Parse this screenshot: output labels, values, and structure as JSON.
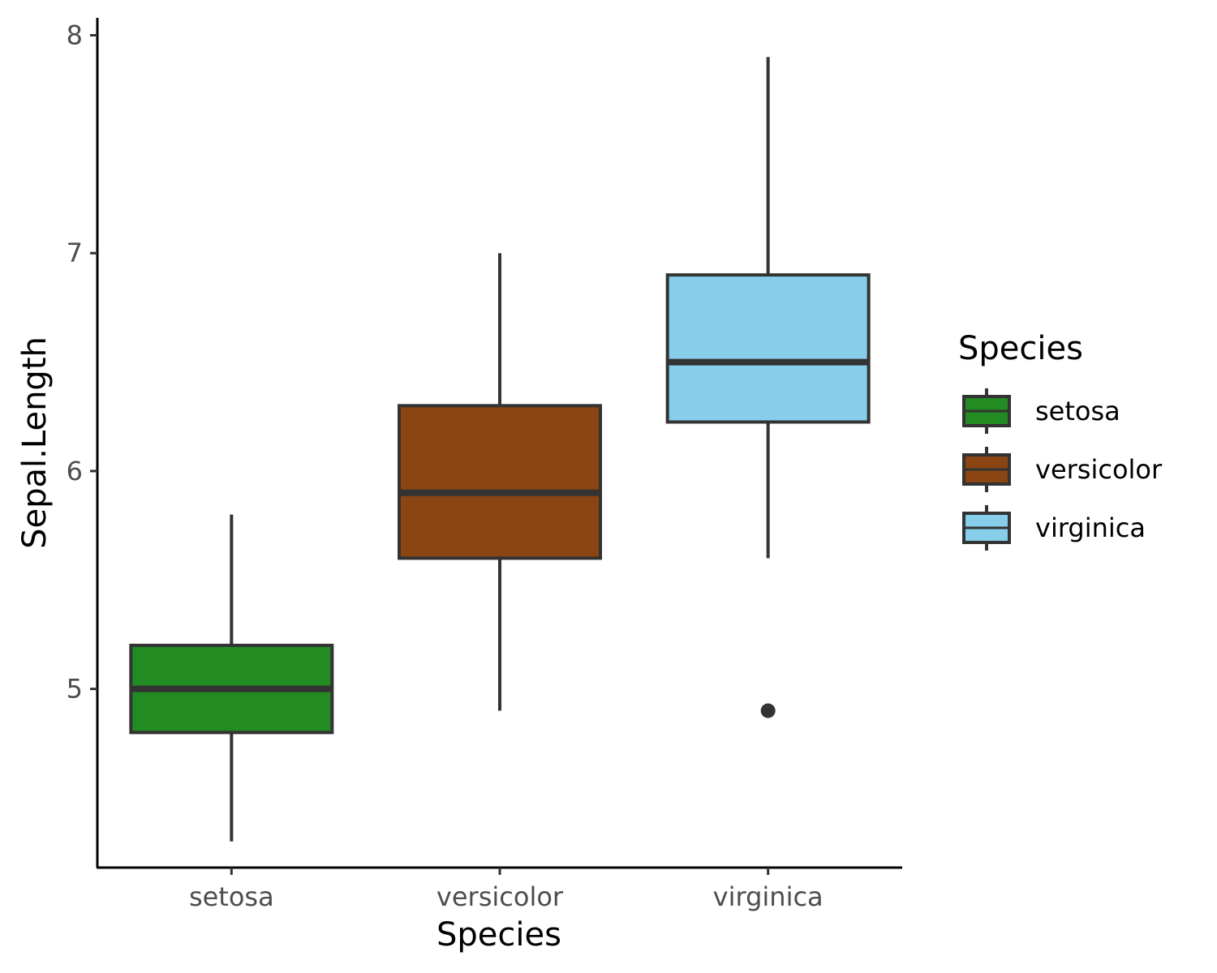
{
  "chart_data": {
    "type": "boxplot",
    "title": "",
    "xlabel": "Species",
    "ylabel": "Sepal.Length",
    "categories": [
      "setosa",
      "versicolor",
      "virginica"
    ],
    "ylim": [
      4.18,
      8.08
    ],
    "yticks": [
      "5",
      "6",
      "7",
      "8"
    ],
    "grid": false,
    "legend": {
      "title": "Species",
      "placement": "right",
      "entries": [
        "setosa",
        "versicolor",
        "virginica"
      ]
    },
    "series": [
      {
        "name": "setosa",
        "color": "#228B22",
        "min": 4.3,
        "q1": 4.8,
        "median": 5.0,
        "q3": 5.2,
        "max": 5.8,
        "outliers": []
      },
      {
        "name": "versicolor",
        "color": "#8B4513",
        "min": 4.9,
        "q1": 5.6,
        "median": 5.9,
        "q3": 6.3,
        "max": 7.0,
        "outliers": []
      },
      {
        "name": "virginica",
        "color": "#87CEEB",
        "min": 5.6,
        "q1": 6.225,
        "median": 6.5,
        "q3": 6.9,
        "max": 7.9,
        "outliers": [
          4.9
        ]
      }
    ]
  }
}
